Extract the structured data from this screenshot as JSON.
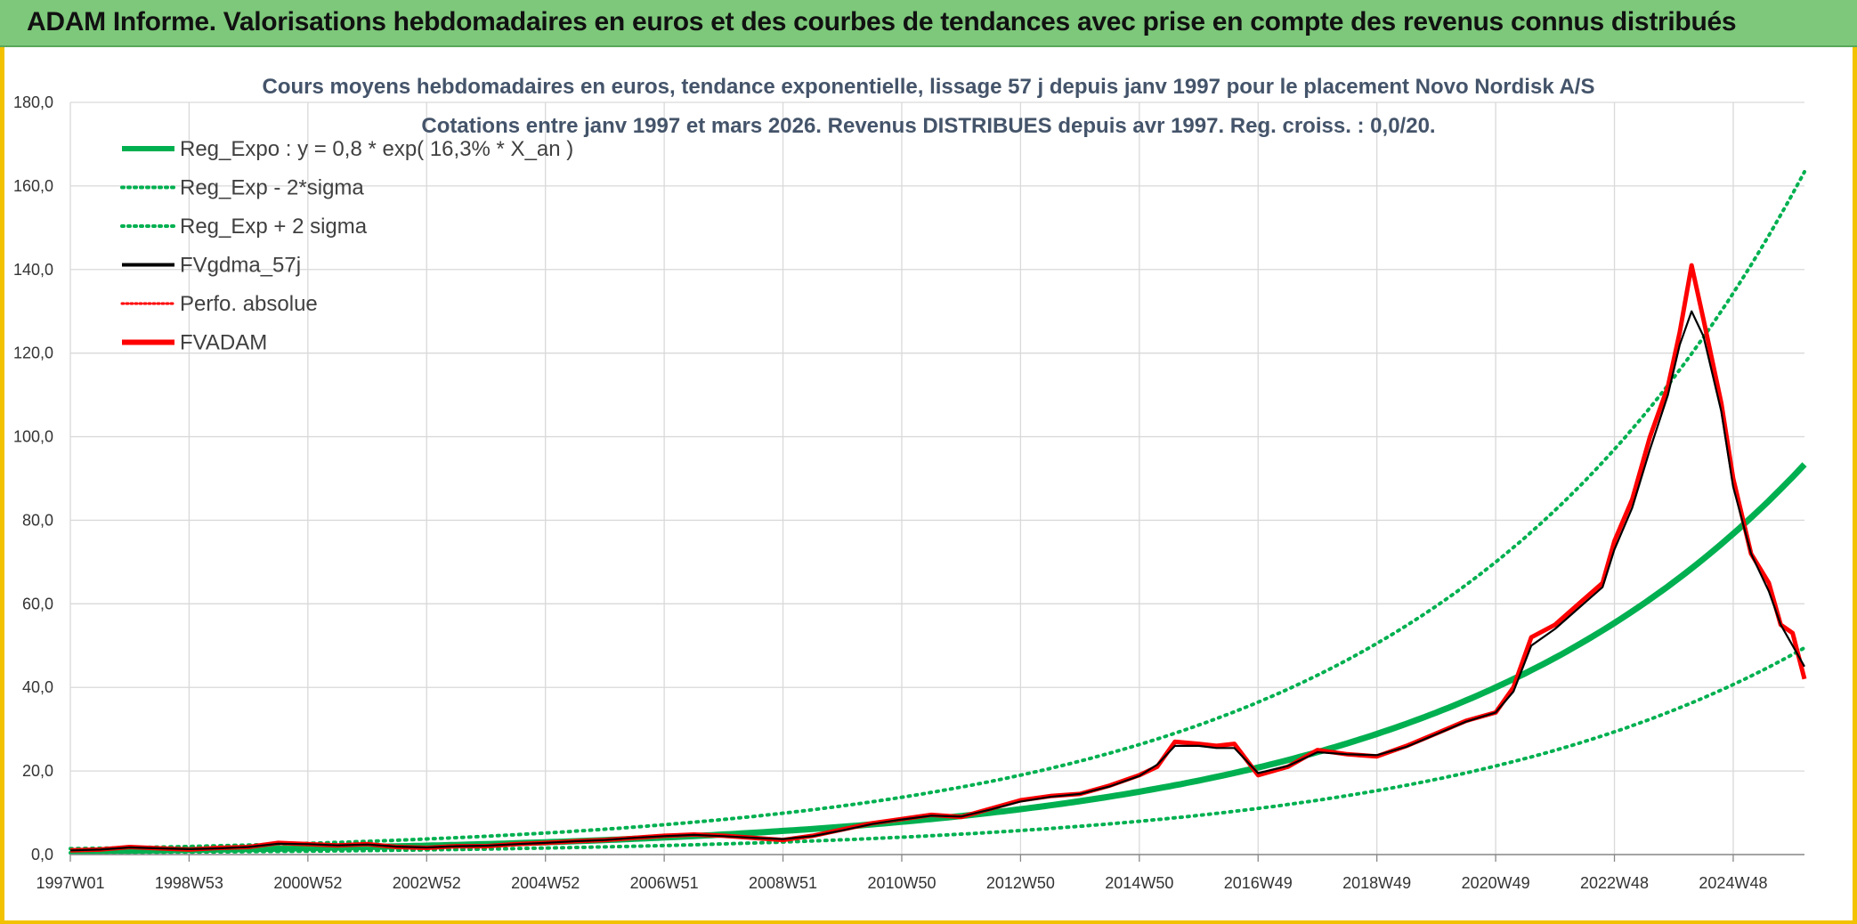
{
  "header": {
    "title": "ADAM Informe. Valorisations hebdomadaires en euros et des courbes de tendances avec prise en compte des revenus connus distribués"
  },
  "colors": {
    "header_bg": "#7dc87a",
    "frame": "#f2c200",
    "trend": "#00b050",
    "red": "#ff0000",
    "black": "#000000"
  },
  "chart_data": {
    "type": "line",
    "title_line1": "Cours moyens hebdomadaires en euros, tendance exponentielle, lissage 57 j depuis janv 1997 pour le placement Novo Nordisk A/S",
    "title_line2": "Cotations entre janv 1997 et mars 2026. Revenus DISTRIBUES depuis avr 1997. Reg. croiss. : 0,0/20.",
    "x_start_year": 1997.0,
    "x_end_year": 2026.2,
    "x_tick_labels": [
      "1997W01",
      "1998W53",
      "2000W52",
      "2002W52",
      "2004W52",
      "2006W51",
      "2008W51",
      "2010W50",
      "2012W50",
      "2014W50",
      "2016W49",
      "2018W49",
      "2020W49",
      "2022W48",
      "2024W48"
    ],
    "x_tick_years": [
      1997.0,
      1999.0,
      2001.0,
      2003.0,
      2005.0,
      2007.0,
      2009.0,
      2011.0,
      2013.0,
      2015.0,
      2017.0,
      2019.0,
      2021.0,
      2023.0,
      2025.0
    ],
    "y_tick_labels": [
      "0,0",
      "20,0",
      "40,0",
      "60,0",
      "80,0",
      "100,0",
      "120,0",
      "140,0",
      "160,0",
      "180,0"
    ],
    "ylim": [
      0,
      180
    ],
    "grid": true,
    "legend_position": "top-left",
    "legend": [
      {
        "label": "Reg_Expo : y = 0,8 * exp( 16,3% *  X_an )",
        "style": "trend-solid"
      },
      {
        "label": "Reg_Exp - 2*sigma",
        "style": "trend-dotted"
      },
      {
        "label": "Reg_Exp + 2 sigma",
        "style": "trend-dotted"
      },
      {
        "label": "FVgdma_57j",
        "style": "black-solid"
      },
      {
        "label": "Perfo. absolue",
        "style": "red-dotted"
      },
      {
        "label": "FVADAM",
        "style": "red-solid"
      }
    ],
    "regression": {
      "a": 0.8,
      "rate": 0.163,
      "lower_factor": 0.53,
      "upper_factor": 1.75
    },
    "series": [
      {
        "name": "FVADAM",
        "x": [
          1997.0,
          1997.5,
          1998.0,
          1998.5,
          1999.0,
          1999.5,
          2000.0,
          2000.5,
          2001.0,
          2001.5,
          2002.0,
          2002.5,
          2003.0,
          2003.5,
          2004.0,
          2004.5,
          2005.0,
          2005.5,
          2006.0,
          2006.5,
          2007.0,
          2007.5,
          2008.0,
          2008.5,
          2009.0,
          2009.5,
          2010.0,
          2010.5,
          2011.0,
          2011.5,
          2012.0,
          2012.5,
          2013.0,
          2013.5,
          2014.0,
          2014.5,
          2015.0,
          2015.3,
          2015.6,
          2016.0,
          2016.3,
          2016.6,
          2017.0,
          2017.5,
          2018.0,
          2018.5,
          2019.0,
          2019.5,
          2020.0,
          2020.5,
          2021.0,
          2021.3,
          2021.6,
          2022.0,
          2022.4,
          2022.8,
          2023.0,
          2023.3,
          2023.6,
          2023.9,
          2024.1,
          2024.3,
          2024.5,
          2024.8,
          2025.0,
          2025.3,
          2025.6,
          2025.8,
          2026.0,
          2026.2
        ],
        "values": [
          1.0,
          1.2,
          1.8,
          1.5,
          1.2,
          1.6,
          1.8,
          2.8,
          2.5,
          2.2,
          2.5,
          1.8,
          1.6,
          2.0,
          2.0,
          2.5,
          2.8,
          3.2,
          3.5,
          4.0,
          4.5,
          4.8,
          4.5,
          4.0,
          3.5,
          4.5,
          6.0,
          7.5,
          8.5,
          9.5,
          9.0,
          11.0,
          13.0,
          14.0,
          14.5,
          16.5,
          19.0,
          21.0,
          27.0,
          26.5,
          26.0,
          26.5,
          19.0,
          21.0,
          25.0,
          24.0,
          23.5,
          26.0,
          29.0,
          32.0,
          34.0,
          40.0,
          52.0,
          55.0,
          60.0,
          65.0,
          75.0,
          85.0,
          100.0,
          112.0,
          125.0,
          141.0,
          128.0,
          108.0,
          90.0,
          72.0,
          65.0,
          55.0,
          53.0,
          42.0
        ]
      },
      {
        "name": "FVgdma_57j",
        "x": [
          1997.0,
          1997.5,
          1998.0,
          1998.5,
          1999.0,
          1999.5,
          2000.0,
          2000.5,
          2001.0,
          2001.5,
          2002.0,
          2002.5,
          2003.0,
          2003.5,
          2004.0,
          2004.5,
          2005.0,
          2005.5,
          2006.0,
          2006.5,
          2007.0,
          2007.5,
          2008.0,
          2008.5,
          2009.0,
          2009.5,
          2010.0,
          2010.5,
          2011.0,
          2011.5,
          2012.0,
          2012.5,
          2013.0,
          2013.5,
          2014.0,
          2014.5,
          2015.0,
          2015.3,
          2015.6,
          2016.0,
          2016.3,
          2016.6,
          2017.0,
          2017.5,
          2018.0,
          2018.5,
          2019.0,
          2019.5,
          2020.0,
          2020.5,
          2021.0,
          2021.3,
          2021.6,
          2022.0,
          2022.4,
          2022.8,
          2023.0,
          2023.3,
          2023.6,
          2023.9,
          2024.1,
          2024.3,
          2024.5,
          2024.8,
          2025.0,
          2025.3,
          2025.6,
          2025.8,
          2026.0,
          2026.2
        ],
        "values": [
          1.0,
          1.2,
          1.7,
          1.5,
          1.3,
          1.5,
          1.8,
          2.6,
          2.5,
          2.2,
          2.4,
          1.9,
          1.7,
          2.0,
          2.1,
          2.5,
          2.8,
          3.2,
          3.5,
          4.0,
          4.4,
          4.7,
          4.4,
          4.0,
          3.7,
          4.4,
          5.8,
          7.3,
          8.4,
          9.3,
          9.1,
          10.8,
          12.7,
          13.8,
          14.5,
          16.3,
          18.8,
          21.5,
          26.0,
          26.0,
          25.5,
          25.5,
          19.5,
          21.2,
          24.5,
          24.0,
          23.8,
          25.8,
          28.8,
          31.8,
          34.0,
          39.0,
          50.0,
          54.0,
          59.0,
          64.0,
          73.0,
          83.0,
          97.0,
          110.0,
          122.0,
          130.0,
          124.0,
          106.0,
          88.0,
          72.0,
          63.0,
          55.0,
          50.0,
          45.0
        ]
      }
    ]
  }
}
